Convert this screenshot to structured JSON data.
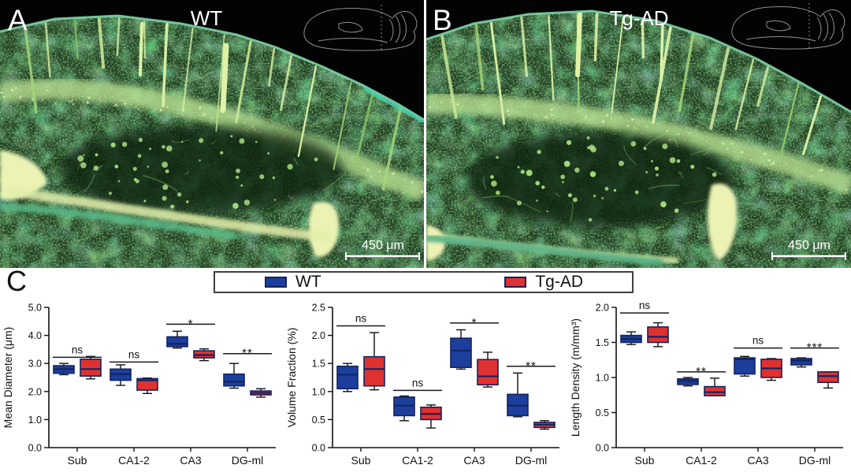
{
  "figure": {
    "panel_a": {
      "letter": "A",
      "title": "WT",
      "scale_bar_label": "450 μm"
    },
    "panel_b": {
      "letter": "B",
      "title": "Tg-AD",
      "scale_bar_label": "450 μm"
    },
    "panel_c": {
      "letter": "C"
    },
    "legend": {
      "position": "top-center",
      "items": [
        {
          "label": "WT",
          "color": "#1c3f9e",
          "edge": "#16235c"
        },
        {
          "label": "Tg-AD",
          "color": "#e03131",
          "edge": "#16235c"
        }
      ]
    }
  },
  "chart_data": [
    {
      "type": "box",
      "title": "",
      "xlabel": "",
      "ylabel": "Mean Diameter (μm)",
      "ylim": [
        0,
        5.0
      ],
      "yticks": [
        "0.0",
        "1.0",
        "2.0",
        "3.0",
        "4.0",
        "5.0"
      ],
      "categories": [
        "Sub",
        "CA1-2",
        "CA3",
        "DG-ml"
      ],
      "series": [
        {
          "name": "WT",
          "color": "#1c3f9e",
          "edge": "#14235e",
          "boxes": [
            [
              2.6,
              2.65,
              2.8,
              2.92,
              3.0
            ],
            [
              2.22,
              2.4,
              2.62,
              2.8,
              2.95
            ],
            [
              3.55,
              3.6,
              3.7,
              3.95,
              4.15
            ],
            [
              2.12,
              2.2,
              2.35,
              2.62,
              3.0
            ]
          ]
        },
        {
          "name": "Tg-AD",
          "color": "#e03131",
          "edge": "#14235e",
          "boxes": [
            [
              2.45,
              2.55,
              2.8,
              3.15,
              3.25
            ],
            [
              1.93,
              2.05,
              2.4,
              2.46,
              2.48
            ],
            [
              3.1,
              3.2,
              3.3,
              3.45,
              3.52
            ],
            [
              1.8,
              1.88,
              1.95,
              2.02,
              2.1
            ]
          ]
        }
      ],
      "significance": [
        {
          "label": "ns",
          "y": 3.22
        },
        {
          "label": "ns",
          "y": 3.05
        },
        {
          "label": "*",
          "y": 4.4
        },
        {
          "label": "**",
          "y": 3.35
        }
      ]
    },
    {
      "type": "box",
      "title": "",
      "xlabel": "",
      "ylabel": "Volume Fraction (%)",
      "ylim": [
        0,
        2.5
      ],
      "yticks": [
        "0.0",
        "0.5",
        "1.0",
        "1.5",
        "2.0",
        "2.5"
      ],
      "categories": [
        "Sub",
        "CA1-2",
        "CA3",
        "DG-ml"
      ],
      "series": [
        {
          "name": "WT",
          "color": "#1c3f9e",
          "edge": "#14235e",
          "boxes": [
            [
              1.0,
              1.05,
              1.3,
              1.45,
              1.5
            ],
            [
              0.48,
              0.57,
              0.75,
              0.9,
              0.92
            ],
            [
              1.4,
              1.43,
              1.73,
              1.95,
              2.1
            ],
            [
              0.55,
              0.57,
              0.75,
              0.95,
              1.33
            ]
          ]
        },
        {
          "name": "Tg-AD",
          "color": "#e03131",
          "edge": "#14235e",
          "boxes": [
            [
              1.03,
              1.1,
              1.4,
              1.62,
              2.05
            ],
            [
              0.35,
              0.5,
              0.6,
              0.72,
              0.76
            ],
            [
              1.08,
              1.12,
              1.27,
              1.57,
              1.7
            ],
            [
              0.33,
              0.36,
              0.41,
              0.45,
              0.48
            ]
          ]
        }
      ],
      "significance": [
        {
          "label": "ns",
          "y": 2.17
        },
        {
          "label": "ns",
          "y": 1.02
        },
        {
          "label": "*",
          "y": 2.22
        },
        {
          "label": "**",
          "y": 1.45
        }
      ]
    },
    {
      "type": "box",
      "title": "",
      "xlabel": "",
      "ylabel": "Length Density (m/mm³)",
      "ylim": [
        0,
        2.0
      ],
      "yticks": [
        "0.0",
        "0.5",
        "1.0",
        "1.5",
        "2.0"
      ],
      "categories": [
        "Sub",
        "CA1-2",
        "CA3",
        "DG-ml"
      ],
      "series": [
        {
          "name": "WT",
          "color": "#1c3f9e",
          "edge": "#14235e",
          "boxes": [
            [
              1.47,
              1.5,
              1.55,
              1.6,
              1.65
            ],
            [
              0.88,
              0.9,
              0.95,
              0.98,
              1.0
            ],
            [
              1.02,
              1.05,
              1.26,
              1.28,
              1.3
            ],
            [
              1.15,
              1.18,
              1.24,
              1.27,
              1.28
            ]
          ]
        },
        {
          "name": "Tg-AD",
          "color": "#e03131",
          "edge": "#14235e",
          "boxes": [
            [
              1.44,
              1.5,
              1.58,
              1.72,
              1.78
            ],
            [
              0.74,
              0.74,
              0.79,
              0.87,
              0.99
            ],
            [
              0.96,
              1.0,
              1.13,
              1.26,
              1.27
            ],
            [
              0.85,
              0.93,
              1.02,
              1.08,
              1.08
            ]
          ]
        }
      ],
      "significance": [
        {
          "label": "ns",
          "y": 1.92
        },
        {
          "label": "**",
          "y": 1.08
        },
        {
          "label": "ns",
          "y": 1.42
        },
        {
          "label": "***",
          "y": 1.42
        }
      ]
    }
  ]
}
